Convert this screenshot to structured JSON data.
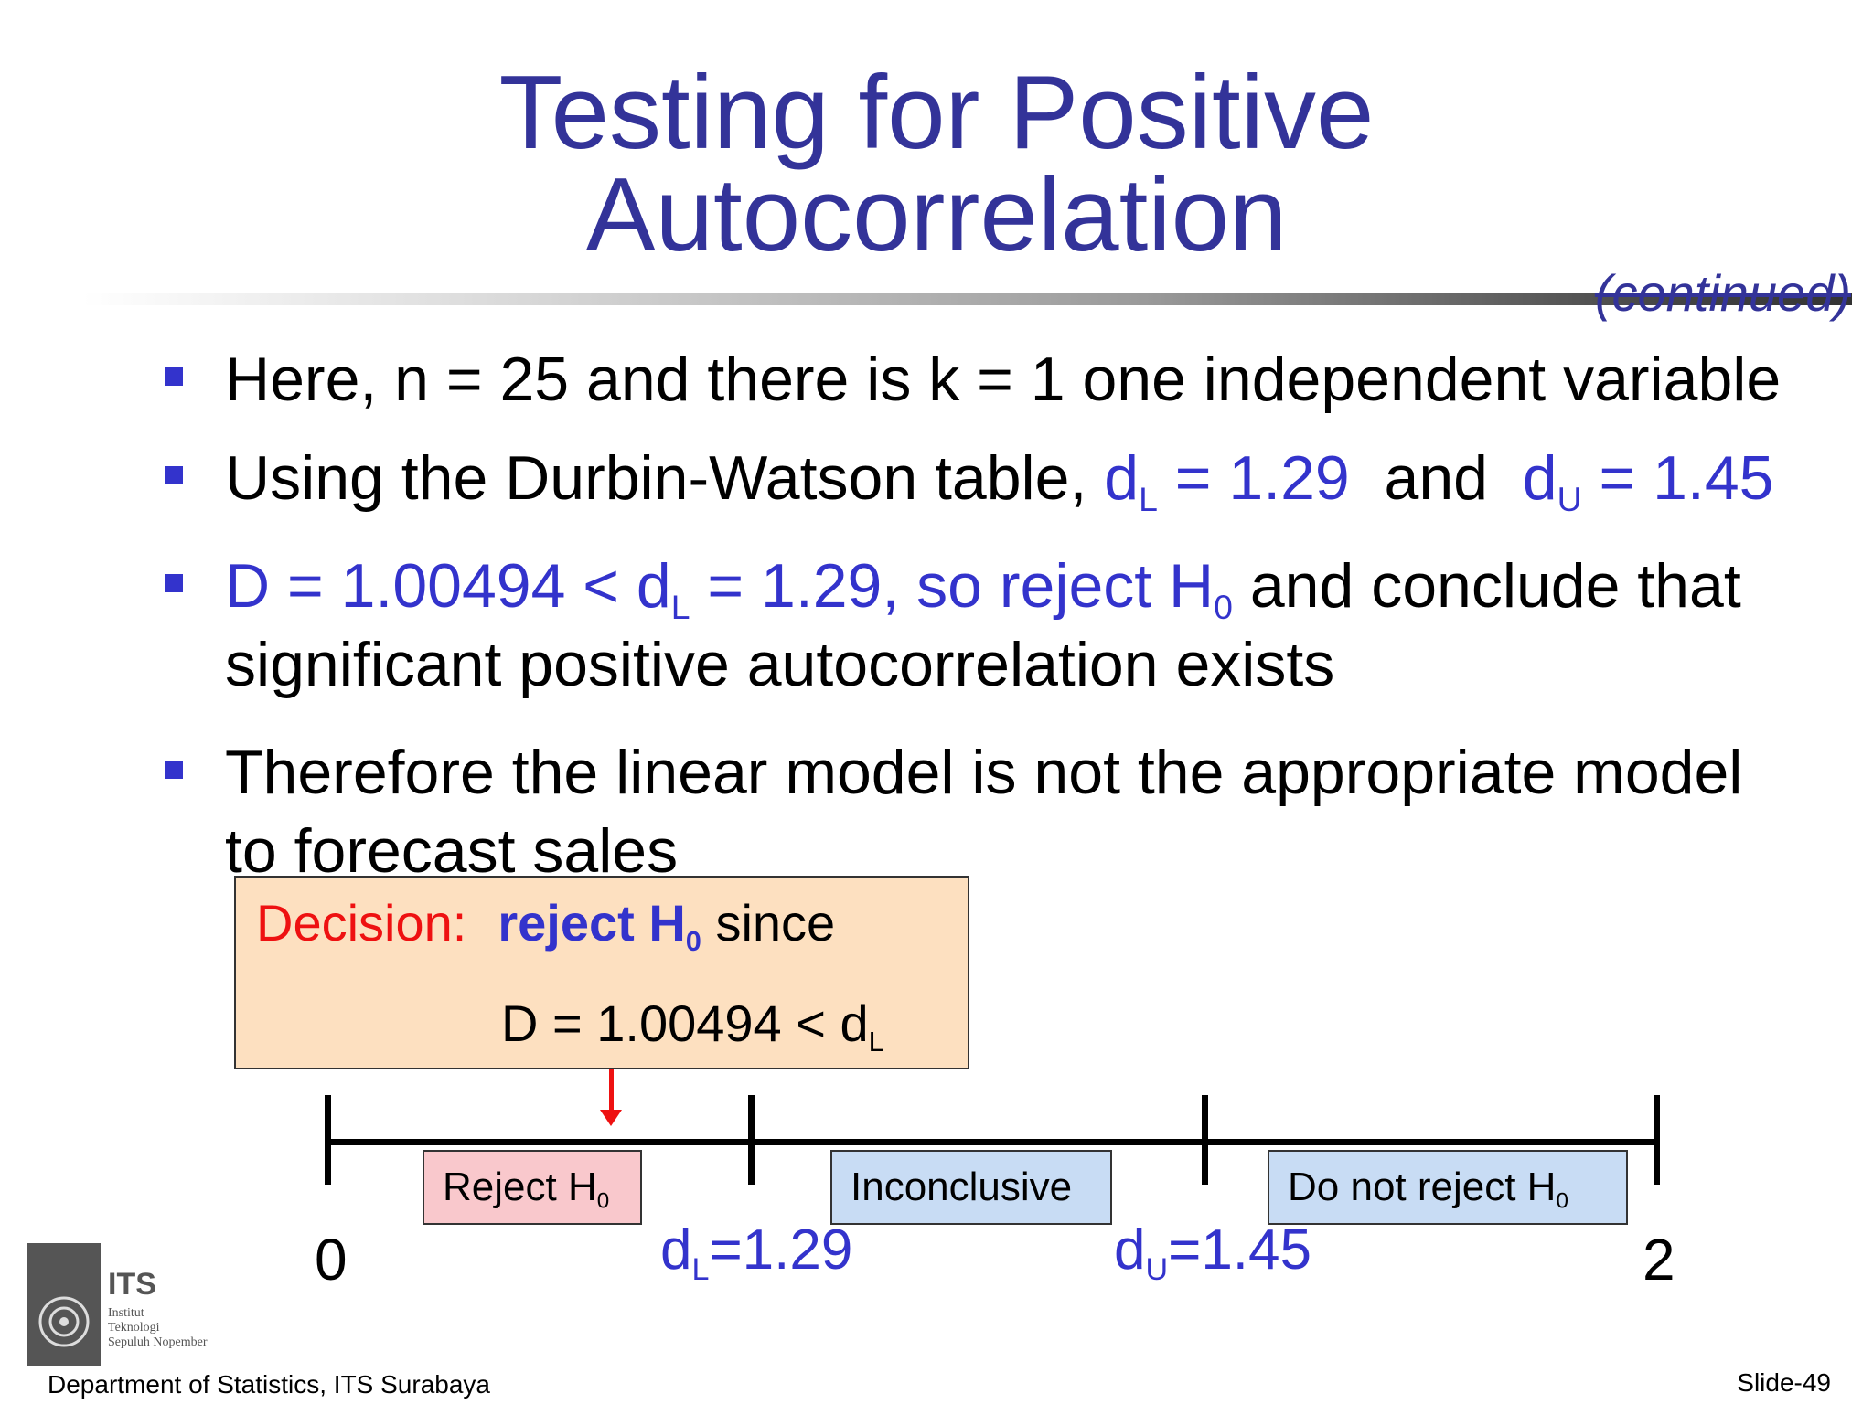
{
  "title": {
    "line1": "Testing for Positive",
    "line2": "Autocorrelation",
    "continued": "(continued)"
  },
  "bullets": {
    "b1": "Here, n = 25 and there is k = 1 one independent variable",
    "b2": {
      "pre": "Using the Durbin-Watson table, ",
      "dl_sym": "d",
      "dl_sub": "L",
      "dl_val": " = 1.29",
      "mid": "  and  ",
      "du_sym": "d",
      "du_sub": "U",
      "du_val": " = 1.45"
    },
    "b3": {
      "p1": "D = 1.00494 < d",
      "sub1": "L",
      "p2": " = 1.29, so reject H",
      "sub2": "0",
      "p3": " and conclude that",
      "line2": "significant positive autocorrelation exists"
    },
    "b4": {
      "line1": "Therefore the linear model is not the appropriate model",
      "line2": "to forecast sales"
    }
  },
  "decision": {
    "label": "Decision:",
    "reject": "reject H",
    "reject_sub": "0",
    "since": " since",
    "line2": "D = 1.00494 < d",
    "line2_sub": "L"
  },
  "number_line": {
    "regions": {
      "reject": "Reject H",
      "reject_sub": "0",
      "inconclusive": "Inconclusive",
      "no_reject": "Do not reject H",
      "no_reject_sub": "0"
    },
    "labels": {
      "zero": "0",
      "dl_sym": "d",
      "dl_sub": "L",
      "dl_val": "=1.29",
      "du_sym": "d",
      "du_sub": "U",
      "du_val": "=1.45",
      "two": "2"
    }
  },
  "logo": {
    "mark": "ITS",
    "line1": "Institut",
    "line2": "Teknologi",
    "line3": "Sepuluh Nopember"
  },
  "footer": {
    "department": "Department of  Statistics, ITS Surabaya",
    "slide": "Slide-49"
  },
  "colors": {
    "title": "#333399",
    "accent_blue": "#3333cc",
    "decision_red": "#ee1111",
    "decision_box": "#fde0c0",
    "reject_region": "#f9c8cc",
    "other_regions": "#c8dcf4"
  }
}
